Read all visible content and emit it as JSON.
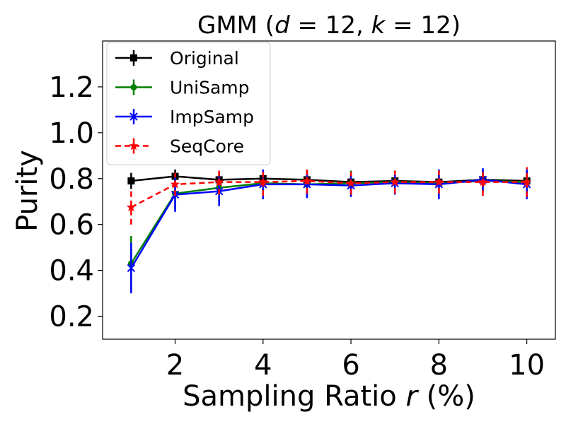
{
  "chart_data": {
    "type": "line",
    "title_prefix": "GMM (",
    "title_d": "d",
    "title_mid1": " = 12, ",
    "title_k": "k",
    "title_mid2": " = 12)",
    "xlabel_prefix": "Sampling Ratio ",
    "xlabel_var": "r",
    "xlabel_suffix": " (%)",
    "ylabel": "Purity",
    "xlim": [
      0.35,
      10.65
    ],
    "ylim": [
      0.1,
      1.4
    ],
    "xticks": [
      2,
      4,
      6,
      8,
      10
    ],
    "yticks": [
      0.2,
      0.4,
      0.6,
      0.8,
      1.0,
      1.2
    ],
    "ytick_labels": [
      "0.2",
      "0.4",
      "0.6",
      "0.8",
      "1.0",
      "1.2"
    ],
    "grid": false,
    "legend_position": "upper-left",
    "x": [
      1,
      2,
      3,
      4,
      5,
      6,
      7,
      8,
      9,
      10
    ],
    "series": [
      {
        "name": "Original",
        "color": "#000000",
        "linestyle": "solid",
        "marker": "square",
        "values": [
          0.79,
          0.81,
          0.795,
          0.8,
          0.795,
          0.785,
          0.79,
          0.785,
          0.795,
          0.79
        ],
        "errors": [
          0.035,
          0.03,
          0.03,
          0.03,
          0.03,
          0.03,
          0.03,
          0.03,
          0.03,
          0.03
        ]
      },
      {
        "name": "UniSamp",
        "color": "#008000",
        "linestyle": "solid",
        "marker": "circle",
        "values": [
          0.43,
          0.735,
          0.76,
          0.78,
          0.775,
          0.78,
          0.785,
          0.78,
          0.79,
          0.785
        ],
        "errors": [
          0.12,
          0.07,
          0.06,
          0.055,
          0.055,
          0.055,
          0.05,
          0.055,
          0.05,
          0.05
        ]
      },
      {
        "name": "ImpSamp",
        "color": "#0000ff",
        "linestyle": "solid",
        "marker": "x",
        "values": [
          0.41,
          0.73,
          0.745,
          0.775,
          0.775,
          0.77,
          0.78,
          0.775,
          0.795,
          0.775
        ],
        "errors": [
          0.11,
          0.075,
          0.065,
          0.065,
          0.06,
          0.05,
          0.05,
          0.065,
          0.05,
          0.065
        ]
      },
      {
        "name": "SeqCore",
        "color": "#ff0000",
        "linestyle": "dashed",
        "marker": "star",
        "values": [
          0.675,
          0.775,
          0.785,
          0.785,
          0.79,
          0.78,
          0.785,
          0.785,
          0.785,
          0.785
        ],
        "errors": [
          0.075,
          0.05,
          0.055,
          0.06,
          0.055,
          0.05,
          0.05,
          0.05,
          0.06,
          0.065
        ]
      }
    ]
  }
}
